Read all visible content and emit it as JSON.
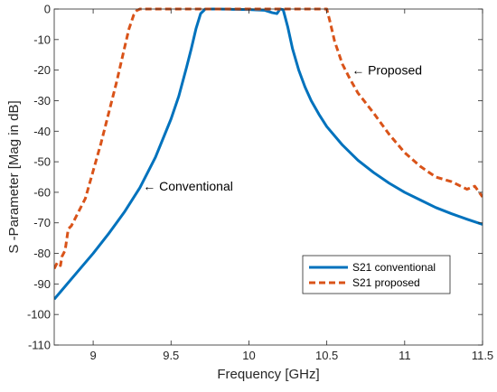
{
  "chart_data": {
    "type": "line",
    "title": "",
    "xlabel": "Frequency [GHz]",
    "ylabel": "S -Parameter [Mag in dB]",
    "xlim": [
      8.75,
      11.5
    ],
    "ylim": [
      -110,
      0
    ],
    "xticks": [
      9,
      9.5,
      10,
      10.5,
      11,
      11.5
    ],
    "xtick_labels": [
      "9",
      "9.5",
      "10",
      "10.5",
      "11",
      "11.5"
    ],
    "yticks": [
      0,
      -10,
      -20,
      -30,
      -40,
      -50,
      -60,
      -70,
      -80,
      -90,
      -100,
      -110
    ],
    "ytick_labels": [
      "0",
      "-10",
      "-20",
      "-30",
      "-40",
      "-50",
      "-60",
      "-70",
      "-80",
      "-90",
      "-100",
      "-110"
    ],
    "grid": false,
    "legend_position": "bottom-right",
    "series": [
      {
        "name": "S21 conventional",
        "color": "#0072BD",
        "style": "solid",
        "x": [
          8.75,
          8.8,
          8.9,
          9.0,
          9.1,
          9.2,
          9.3,
          9.4,
          9.5,
          9.55,
          9.6,
          9.63,
          9.66,
          9.69,
          9.72,
          9.75,
          9.8,
          9.9,
          10.0,
          10.1,
          10.15,
          10.18,
          10.2,
          10.22,
          10.25,
          10.28,
          10.32,
          10.36,
          10.4,
          10.45,
          10.5,
          10.6,
          10.7,
          10.8,
          10.9,
          11.0,
          11.1,
          11.2,
          11.3,
          11.4,
          11.5
        ],
        "y": [
          -95,
          -92,
          -86,
          -80,
          -73.5,
          -66.5,
          -58.5,
          -48.5,
          -36,
          -28.5,
          -19,
          -13,
          -6.5,
          -1.5,
          0,
          0,
          0,
          -0.1,
          -0.2,
          -0.4,
          -1.2,
          -1.5,
          0,
          -0.2,
          -6,
          -13,
          -20,
          -25.5,
          -30,
          -34.5,
          -38.5,
          -44.5,
          -49.5,
          -53.5,
          -57,
          -60,
          -62.5,
          -65,
          -67,
          -68.8,
          -70.5
        ]
      },
      {
        "name": "S21 proposed",
        "color": "#D95319",
        "style": "dashed",
        "x": [
          8.75,
          8.77,
          8.79,
          8.8,
          8.82,
          8.84,
          8.86,
          8.9,
          8.95,
          9.0,
          9.05,
          9.1,
          9.15,
          9.2,
          9.23,
          9.26,
          9.28,
          9.3,
          9.5,
          9.8,
          10.0,
          10.2,
          10.4,
          10.5,
          10.52,
          10.55,
          10.6,
          10.65,
          10.7,
          10.8,
          10.9,
          11.0,
          11.1,
          11.2,
          11.3,
          11.4,
          11.45,
          11.5
        ],
        "y": [
          -85,
          -83,
          -84,
          -81,
          -79,
          -72,
          -71,
          -67,
          -62,
          -53,
          -44,
          -34,
          -24,
          -13,
          -6.5,
          -2,
          -0.5,
          0,
          0,
          0,
          0,
          0,
          0,
          0,
          -4,
          -10.5,
          -18,
          -23,
          -27.5,
          -34,
          -41,
          -47,
          -51.5,
          -55,
          -56.5,
          -59,
          -58,
          -61.5
        ]
      }
    ],
    "annotations": [
      {
        "text": "← Conventional",
        "x": 9.32,
        "y": -58
      },
      {
        "text": "← Proposed",
        "x": 10.66,
        "y": -20
      }
    ]
  }
}
